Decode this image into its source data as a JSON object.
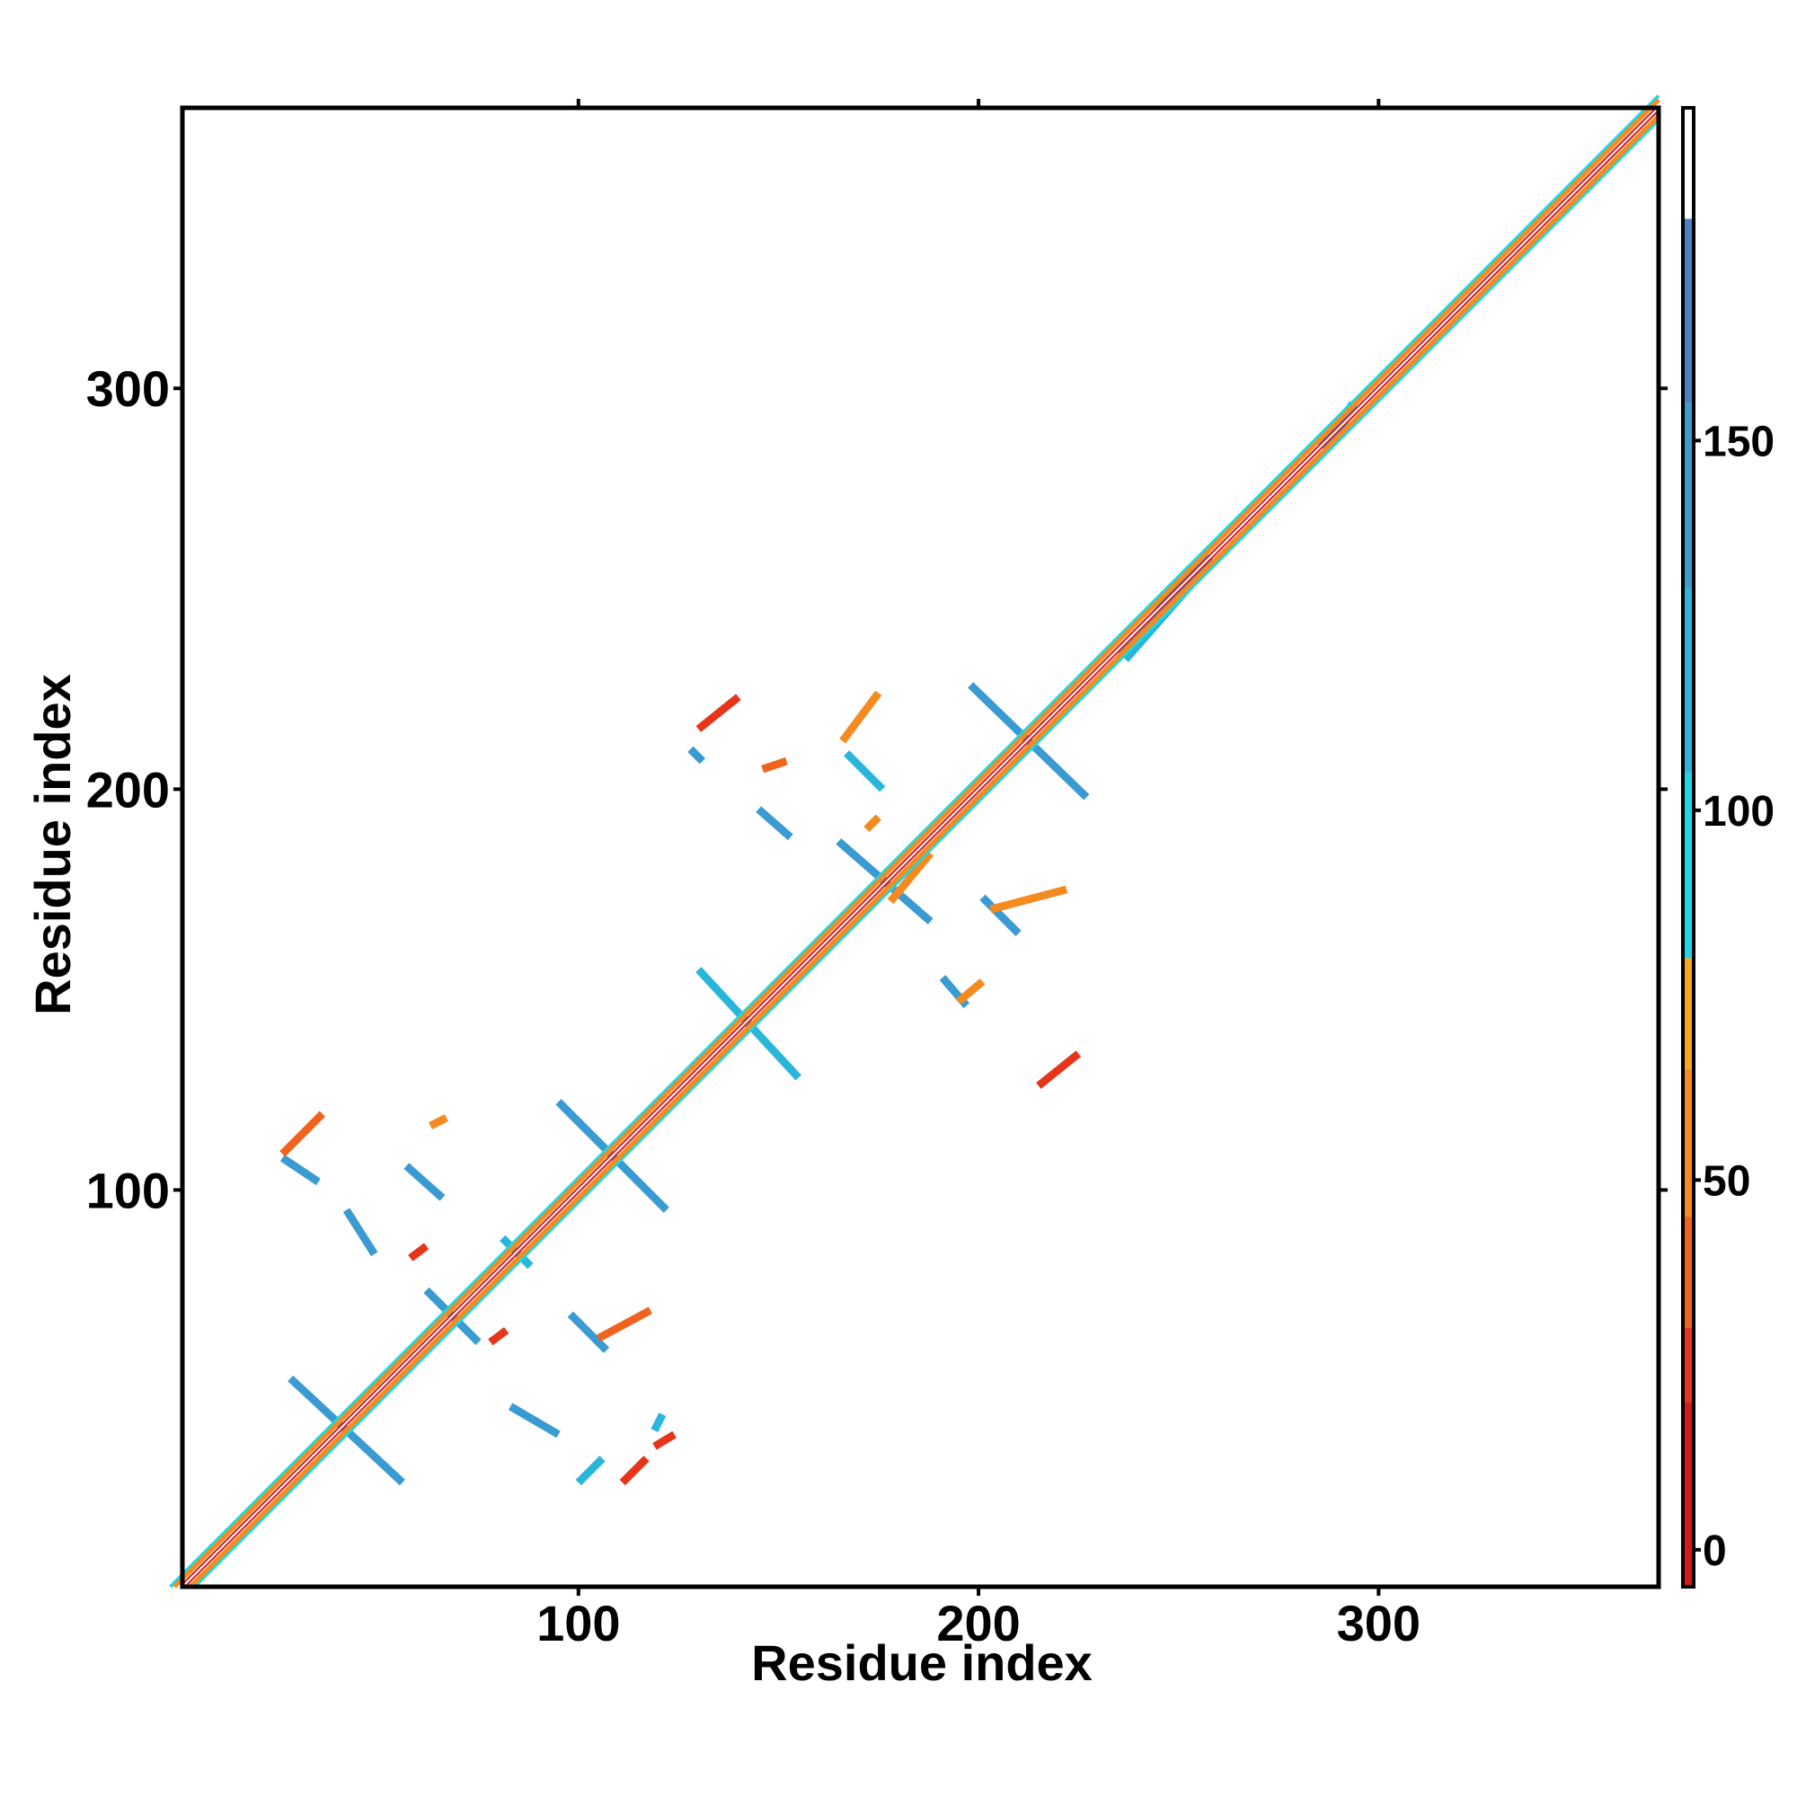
{
  "chart_data": {
    "type": "heatmap",
    "title": "",
    "xlabel": "Residue index",
    "ylabel": "Residue index",
    "xlim": [
      1,
      370
    ],
    "ylim": [
      1,
      370
    ],
    "x_ticks": [
      100,
      200,
      300
    ],
    "y_ticks": [
      100,
      200,
      300
    ],
    "grid": false,
    "colorbar": {
      "ticks": [
        0,
        50,
        100,
        150
      ],
      "range": [
        -5,
        195
      ],
      "stops": [
        {
          "from": -5,
          "to": 20,
          "color": "#d7191c"
        },
        {
          "from": 20,
          "to": 30,
          "color": "#e6351a"
        },
        {
          "from": 30,
          "to": 45,
          "color": "#f0631f"
        },
        {
          "from": 45,
          "to": 65,
          "color": "#f58a1f"
        },
        {
          "from": 65,
          "to": 80,
          "color": "#f8a51f"
        },
        {
          "from": 80,
          "to": 105,
          "color": "#1fd7e4"
        },
        {
          "from": 105,
          "to": 130,
          "color": "#2ab6da"
        },
        {
          "from": 130,
          "to": 155,
          "color": "#3a9ad2"
        },
        {
          "from": 155,
          "to": 180,
          "color": "#4a82c4"
        },
        {
          "from": 180,
          "to": 195,
          "color": "#ffffff"
        }
      ]
    },
    "diagonal": {
      "from": 1,
      "to": 370
    },
    "segments": [
      {
        "x1": 28,
        "y1": 53,
        "x2": 56,
        "y2": 27,
        "color": "#3a9ad2"
      },
      {
        "x1": 62,
        "y1": 75,
        "x2": 75,
        "y2": 62,
        "color": "#3a9ad2"
      },
      {
        "x1": 81,
        "y1": 88,
        "x2": 88,
        "y2": 81,
        "color": "#2ab6da"
      },
      {
        "x1": 95,
        "y1": 122,
        "x2": 122,
        "y2": 95,
        "color": "#3a9ad2"
      },
      {
        "x1": 130,
        "y1": 155,
        "x2": 155,
        "y2": 128,
        "color": "#2ab6da"
      },
      {
        "x1": 165,
        "y1": 187,
        "x2": 188,
        "y2": 167,
        "color": "#3a9ad2"
      },
      {
        "x1": 198,
        "y1": 226,
        "x2": 227,
        "y2": 198,
        "color": "#3a9ad2"
      },
      {
        "x1": 26,
        "y1": 108,
        "x2": 35,
        "y2": 102,
        "color": "#3a9ad2"
      },
      {
        "x1": 42,
        "y1": 95,
        "x2": 49,
        "y2": 84,
        "color": "#3a9ad2"
      },
      {
        "x1": 57,
        "y1": 106,
        "x2": 66,
        "y2": 98,
        "color": "#3a9ad2"
      },
      {
        "x1": 83,
        "y1": 46,
        "x2": 95,
        "y2": 39,
        "color": "#3a9ad2"
      },
      {
        "x1": 98,
        "y1": 69,
        "x2": 107,
        "y2": 60,
        "color": "#3a9ad2"
      },
      {
        "x1": 145,
        "y1": 195,
        "x2": 153,
        "y2": 188,
        "color": "#3a9ad2"
      },
      {
        "x1": 167,
        "y1": 209,
        "x2": 176,
        "y2": 200,
        "color": "#2ab6da"
      },
      {
        "x1": 191,
        "y1": 153,
        "x2": 197,
        "y2": 146,
        "color": "#3a9ad2"
      },
      {
        "x1": 201,
        "y1": 173,
        "x2": 210,
        "y2": 164,
        "color": "#3a9ad2"
      },
      {
        "x1": 236,
        "y1": 233,
        "x2": 258,
        "y2": 258,
        "color": "#2ab6da",
        "w": 4
      },
      {
        "x1": 286,
        "y1": 285,
        "x2": 294,
        "y2": 296,
        "color": "#2ab6da",
        "w": 3
      },
      {
        "x1": 26,
        "y1": 109,
        "x2": 36,
        "y2": 119,
        "color": "#f0631f"
      },
      {
        "x1": 63,
        "y1": 116,
        "x2": 67,
        "y2": 118,
        "color": "#f58a1f"
      },
      {
        "x1": 130,
        "y1": 215,
        "x2": 140,
        "y2": 223,
        "color": "#e6351a"
      },
      {
        "x1": 111,
        "y1": 27,
        "x2": 117,
        "y2": 33,
        "color": "#e6351a"
      },
      {
        "x1": 119,
        "y1": 36,
        "x2": 124,
        "y2": 39,
        "color": "#e6351a"
      },
      {
        "x1": 215,
        "y1": 126,
        "x2": 225,
        "y2": 134,
        "color": "#e6351a"
      },
      {
        "x1": 178,
        "y1": 172,
        "x2": 188,
        "y2": 184,
        "color": "#f58a1f"
      },
      {
        "x1": 203,
        "y1": 170,
        "x2": 222,
        "y2": 175,
        "color": "#f58a1f"
      },
      {
        "x1": 105,
        "y1": 63,
        "x2": 118,
        "y2": 70,
        "color": "#f0631f"
      },
      {
        "x1": 166,
        "y1": 212,
        "x2": 175,
        "y2": 224,
        "color": "#f58a1f"
      },
      {
        "x1": 195,
        "y1": 147,
        "x2": 201,
        "y2": 152,
        "color": "#f58a1f"
      },
      {
        "x1": 78,
        "y1": 62,
        "x2": 82,
        "y2": 65,
        "color": "#e6351a"
      },
      {
        "x1": 58,
        "y1": 83,
        "x2": 62,
        "y2": 86,
        "color": "#e6351a"
      },
      {
        "x1": 146,
        "y1": 205,
        "x2": 152,
        "y2": 207,
        "color": "#f0631f"
      },
      {
        "x1": 172,
        "y1": 190,
        "x2": 175,
        "y2": 193,
        "color": "#f58a1f"
      },
      {
        "x1": 100,
        "y1": 27,
        "x2": 106,
        "y2": 33,
        "color": "#2ab6da"
      },
      {
        "x1": 119,
        "y1": 40,
        "x2": 121,
        "y2": 44,
        "color": "#2ab6da"
      },
      {
        "x1": 128,
        "y1": 210,
        "x2": 131,
        "y2": 207,
        "color": "#3a9ad2"
      }
    ]
  }
}
